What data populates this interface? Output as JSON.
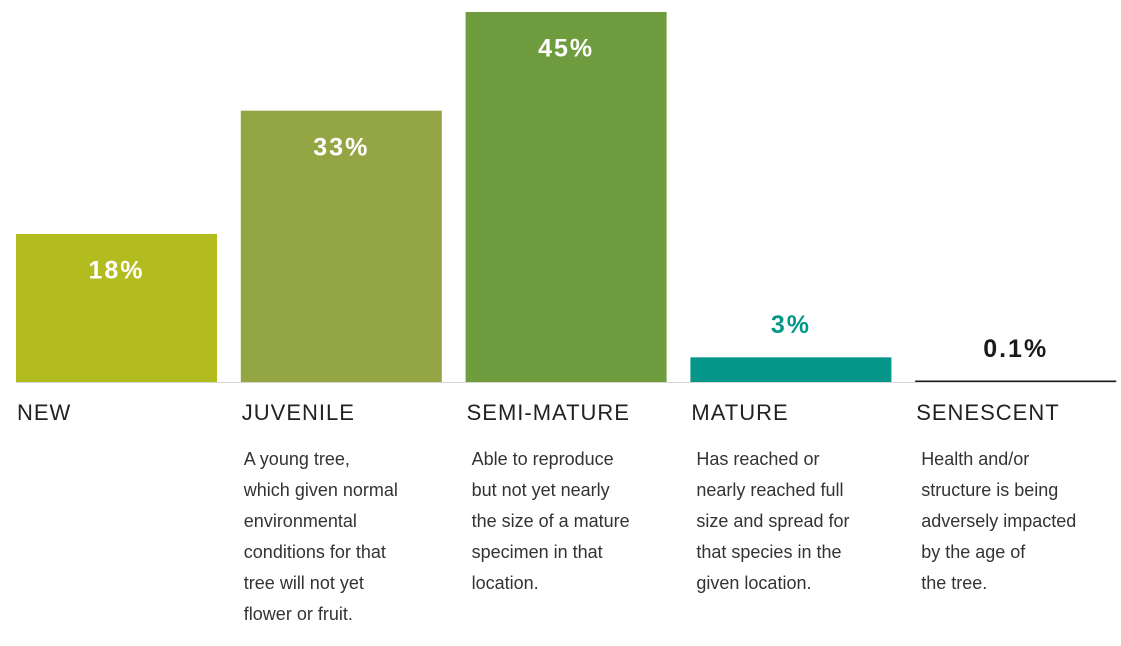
{
  "chart_data": {
    "type": "bar",
    "categories": [
      "NEW",
      "JUVENILE",
      "SEMI-MATURE",
      "MATURE",
      "SENESCENT"
    ],
    "values": [
      18,
      33,
      45,
      3,
      0.1
    ],
    "value_labels": [
      "18%",
      "33%",
      "45%",
      "3%",
      "0.1%"
    ],
    "colors": [
      "#b3bc1e",
      "#94a543",
      "#6e9c3e",
      "#05968a",
      "#1a1a1a"
    ],
    "descriptions": [
      null,
      [
        "A young tree,",
        "which given normal",
        "environmental",
        "conditions for that",
        "tree will not yet",
        "flower or fruit."
      ],
      [
        "Able to reproduce",
        "but not yet nearly",
        "the size of a mature",
        "specimen in that",
        "location."
      ],
      [
        "Has reached or",
        "nearly reached full",
        "size and spread for",
        "that species in the",
        "given location."
      ],
      [
        "Health and/or",
        "structure is being",
        "adversely impacted",
        "by the age of",
        "the tree."
      ]
    ],
    "ylim": [
      0,
      45
    ]
  }
}
